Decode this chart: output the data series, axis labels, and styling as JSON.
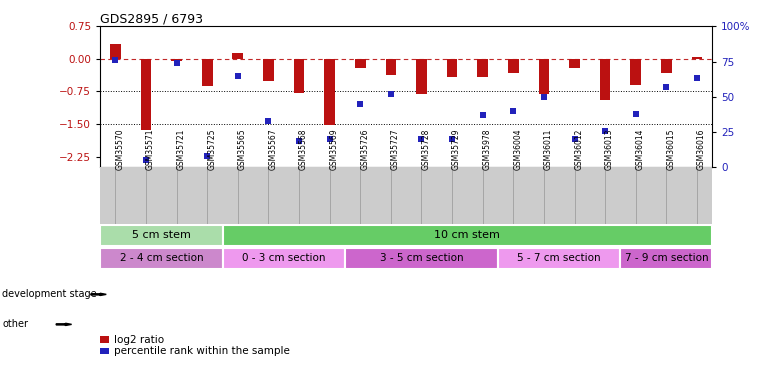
{
  "title": "GDS2895 / 6793",
  "samples": [
    "GSM35570",
    "GSM35571",
    "GSM35721",
    "GSM35725",
    "GSM35565",
    "GSM35567",
    "GSM35568",
    "GSM35569",
    "GSM35726",
    "GSM35727",
    "GSM35728",
    "GSM35729",
    "GSM35978",
    "GSM36004",
    "GSM36011",
    "GSM36012",
    "GSM36013",
    "GSM36014",
    "GSM36015",
    "GSM36016"
  ],
  "log2_ratio": [
    0.35,
    -1.65,
    -0.04,
    -0.62,
    0.14,
    -0.52,
    -0.78,
    -1.52,
    -0.22,
    -0.38,
    -0.8,
    -0.42,
    -0.42,
    -0.33,
    -0.82,
    -0.22,
    -0.95,
    -0.6,
    -0.32,
    0.04
  ],
  "percentile": [
    76,
    5,
    74,
    8,
    65,
    33,
    19,
    20,
    45,
    52,
    20,
    20,
    37,
    40,
    50,
    20,
    26,
    38,
    57,
    63
  ],
  "ylim_left": [
    -2.5,
    0.75
  ],
  "ylim_right": [
    0,
    100
  ],
  "yticks_left": [
    0.75,
    0,
    -0.75,
    -1.5,
    -2.25
  ],
  "yticks_right": [
    100,
    75,
    50,
    25,
    0
  ],
  "hlines": [
    -0.75,
    -1.5
  ],
  "dashed_line_y": 0,
  "bar_color": "#bb1111",
  "dot_color": "#2222bb",
  "plot_bg": "#ffffff",
  "background_color": "#ffffff",
  "xticklabel_bg": "#cccccc",
  "dev_stage_labels": [
    "5 cm stem",
    "10 cm stem"
  ],
  "dev_stage_col_ends": [
    4,
    20
  ],
  "dev_stage_colors": [
    "#aaddaa",
    "#66cc66"
  ],
  "dev_stage_text_colors": [
    "#000000",
    "#000000"
  ],
  "other_labels": [
    "2 - 4 cm section",
    "0 - 3 cm section",
    "3 - 5 cm section",
    "5 - 7 cm section",
    "7 - 9 cm section"
  ],
  "other_col_ends": [
    4,
    8,
    13,
    17,
    20
  ],
  "other_colors": [
    "#cc88cc",
    "#ee99ee",
    "#cc66cc",
    "#ee99ee",
    "#cc66cc"
  ],
  "other_text_color": "#000000",
  "label_dev": "development stage",
  "label_other": "other",
  "legend_red": "log2 ratio",
  "legend_blue": "percentile rank within the sample"
}
